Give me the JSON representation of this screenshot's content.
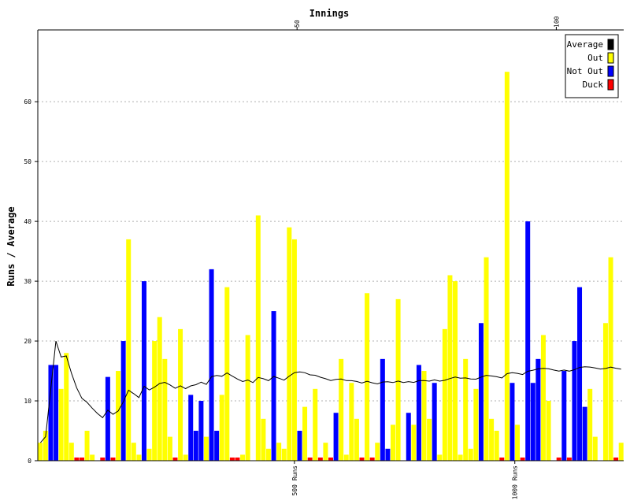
{
  "chart_data": {
    "type": "bar",
    "title": "",
    "xlabel": "Innings",
    "ylabel": "Runs / Average",
    "ylim": [
      0,
      72
    ],
    "yticks": [
      0,
      10,
      20,
      30,
      40,
      50,
      60
    ],
    "grid": "horizontal dashed",
    "legend_position": "top-right",
    "innings_ticks": [
      {
        "inning": 50,
        "label": "50"
      },
      {
        "inning": 100,
        "label": "100"
      }
    ],
    "run_milestones": [
      {
        "inning": 49.5,
        "label": "500 Runs"
      },
      {
        "inning": 92,
        "label": "1000 Runs"
      }
    ],
    "legend": [
      {
        "key": "average",
        "label": "Average",
        "color": "#000000"
      },
      {
        "key": "out",
        "label": "Out",
        "color": "#ffff00"
      },
      {
        "key": "not_out",
        "label": "Not Out",
        "color": "#0000ff"
      },
      {
        "key": "duck",
        "label": "Duck",
        "color": "#ff0000"
      }
    ],
    "colors": {
      "out": "#ffff00",
      "not_out": "#0000ff",
      "duck": "#ff0000",
      "average": "#000000"
    },
    "innings": [
      {
        "runs": 3,
        "status": "out"
      },
      {
        "runs": 5,
        "status": "out"
      },
      {
        "runs": 16,
        "status": "not_out"
      },
      {
        "runs": 16,
        "status": "not_out"
      },
      {
        "runs": 12,
        "status": "out"
      },
      {
        "runs": 18,
        "status": "out"
      },
      {
        "runs": 3,
        "status": "out"
      },
      {
        "runs": 0,
        "status": "duck"
      },
      {
        "runs": 0,
        "status": "duck"
      },
      {
        "runs": 5,
        "status": "out"
      },
      {
        "runs": 1,
        "status": "out"
      },
      {
        "runs": 0,
        "status": "out"
      },
      {
        "runs": 0,
        "status": "duck"
      },
      {
        "runs": 14,
        "status": "not_out"
      },
      {
        "runs": 0,
        "status": "duck"
      },
      {
        "runs": 15,
        "status": "out"
      },
      {
        "runs": 20,
        "status": "not_out"
      },
      {
        "runs": 37,
        "status": "out"
      },
      {
        "runs": 3,
        "status": "out"
      },
      {
        "runs": 1,
        "status": "out"
      },
      {
        "runs": 30,
        "status": "not_out"
      },
      {
        "runs": 2,
        "status": "out"
      },
      {
        "runs": 20,
        "status": "out"
      },
      {
        "runs": 24,
        "status": "out"
      },
      {
        "runs": 17,
        "status": "out"
      },
      {
        "runs": 4,
        "status": "out"
      },
      {
        "runs": 0,
        "status": "duck"
      },
      {
        "runs": 22,
        "status": "out"
      },
      {
        "runs": 1,
        "status": "out"
      },
      {
        "runs": 11,
        "status": "not_out"
      },
      {
        "runs": 5,
        "status": "not_out"
      },
      {
        "runs": 10,
        "status": "not_out"
      },
      {
        "runs": 4,
        "status": "out"
      },
      {
        "runs": 32,
        "status": "not_out"
      },
      {
        "runs": 5,
        "status": "not_out"
      },
      {
        "runs": 11,
        "status": "out"
      },
      {
        "runs": 29,
        "status": "out"
      },
      {
        "runs": 0,
        "status": "duck"
      },
      {
        "runs": 0,
        "status": "duck"
      },
      {
        "runs": 1,
        "status": "out"
      },
      {
        "runs": 21,
        "status": "out"
      },
      {
        "runs": 0,
        "status": "out"
      },
      {
        "runs": 41,
        "status": "out"
      },
      {
        "runs": 7,
        "status": "out"
      },
      {
        "runs": 2,
        "status": "out"
      },
      {
        "runs": 25,
        "status": "not_out"
      },
      {
        "runs": 3,
        "status": "out"
      },
      {
        "runs": 2,
        "status": "out"
      },
      {
        "runs": 39,
        "status": "out"
      },
      {
        "runs": 37,
        "status": "out"
      },
      {
        "runs": 5,
        "status": "not_out"
      },
      {
        "runs": 9,
        "status": "out"
      },
      {
        "runs": 0,
        "status": "duck"
      },
      {
        "runs": 12,
        "status": "out"
      },
      {
        "runs": 0,
        "status": "duck"
      },
      {
        "runs": 3,
        "status": "out"
      },
      {
        "runs": 0,
        "status": "duck"
      },
      {
        "runs": 8,
        "status": "not_out"
      },
      {
        "runs": 17,
        "status": "out"
      },
      {
        "runs": 1,
        "status": "out"
      },
      {
        "runs": 13,
        "status": "out"
      },
      {
        "runs": 7,
        "status": "out"
      },
      {
        "runs": 0,
        "status": "duck"
      },
      {
        "runs": 28,
        "status": "out"
      },
      {
        "runs": 0,
        "status": "duck"
      },
      {
        "runs": 3,
        "status": "out"
      },
      {
        "runs": 17,
        "status": "not_out"
      },
      {
        "runs": 2,
        "status": "not_out"
      },
      {
        "runs": 6,
        "status": "out"
      },
      {
        "runs": 27,
        "status": "out"
      },
      {
        "runs": 0,
        "status": "out"
      },
      {
        "runs": 8,
        "status": "not_out"
      },
      {
        "runs": 6,
        "status": "out"
      },
      {
        "runs": 16,
        "status": "not_out"
      },
      {
        "runs": 15,
        "status": "out"
      },
      {
        "runs": 7,
        "status": "out"
      },
      {
        "runs": 13,
        "status": "not_out"
      },
      {
        "runs": 1,
        "status": "out"
      },
      {
        "runs": 22,
        "status": "out"
      },
      {
        "runs": 31,
        "status": "out"
      },
      {
        "runs": 30,
        "status": "out"
      },
      {
        "runs": 1,
        "status": "out"
      },
      {
        "runs": 17,
        "status": "out"
      },
      {
        "runs": 2,
        "status": "out"
      },
      {
        "runs": 12,
        "status": "out"
      },
      {
        "runs": 23,
        "status": "not_out"
      },
      {
        "runs": 34,
        "status": "out"
      },
      {
        "runs": 7,
        "status": "out"
      },
      {
        "runs": 5,
        "status": "out"
      },
      {
        "runs": 0,
        "status": "duck"
      },
      {
        "runs": 65,
        "status": "out"
      },
      {
        "runs": 13,
        "status": "not_out"
      },
      {
        "runs": 6,
        "status": "out"
      },
      {
        "runs": 0,
        "status": "duck"
      },
      {
        "runs": 40,
        "status": "not_out"
      },
      {
        "runs": 13,
        "status": "not_out"
      },
      {
        "runs": 17,
        "status": "not_out"
      },
      {
        "runs": 21,
        "status": "out"
      },
      {
        "runs": 10,
        "status": "out"
      },
      {
        "runs": 0,
        "status": "out"
      },
      {
        "runs": 0,
        "status": "duck"
      },
      {
        "runs": 15,
        "status": "not_out"
      },
      {
        "runs": 0,
        "status": "duck"
      },
      {
        "runs": 20,
        "status": "not_out"
      },
      {
        "runs": 29,
        "status": "not_out"
      },
      {
        "runs": 9,
        "status": "not_out"
      },
      {
        "runs": 12,
        "status": "out"
      },
      {
        "runs": 4,
        "status": "out"
      },
      {
        "runs": 0,
        "status": "out"
      },
      {
        "runs": 23,
        "status": "out"
      },
      {
        "runs": 34,
        "status": "out"
      },
      {
        "runs": 0,
        "status": "duck"
      },
      {
        "runs": 3,
        "status": "out"
      }
    ]
  }
}
